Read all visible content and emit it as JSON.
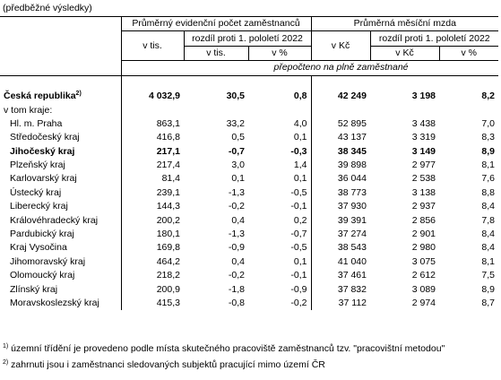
{
  "subtitle": "(předběžné výsledky)",
  "header": {
    "group1": "Průměrný evidenční počet zaměstnanců",
    "group2": "Průměrná měsíční mzda",
    "unit_tis": "v tis.",
    "unit_kc": "v Kč",
    "diff": "rozdíl proti 1. pololetí 2022",
    "sub_tis": "v tis.",
    "sub_pct": "v %",
    "sub_kc": "v Kč",
    "sub_pct2": "v %",
    "note": "přepočteno na plně zaměstnané"
  },
  "total": {
    "name": "Česká republika",
    "sup": "2)",
    "v1": "4 032,9",
    "v2": "30,5",
    "v3": "0,8",
    "v4": "42 249",
    "v5": "3 198",
    "v6": "8,2"
  },
  "in_regions": "v tom kraje:",
  "rows": [
    {
      "name": "Hl. m. Praha",
      "v1": "863,1",
      "v2": "33,2",
      "v3": "4,0",
      "v4": "52 895",
      "v5": "3 438",
      "v6": "7,0"
    },
    {
      "name": "Středočeský kraj",
      "v1": "416,8",
      "v2": "0,5",
      "v3": "0,1",
      "v4": "43 137",
      "v5": "3 319",
      "v6": "8,3"
    },
    {
      "name": "Jihočeský kraj",
      "v1": "217,1",
      "v2": "-0,7",
      "v3": "-0,3",
      "v4": "38 345",
      "v5": "3 149",
      "v6": "8,9",
      "bold": true
    },
    {
      "name": "Plzeňský kraj",
      "v1": "217,4",
      "v2": "3,0",
      "v3": "1,4",
      "v4": "39 898",
      "v5": "2 977",
      "v6": "8,1"
    },
    {
      "name": "Karlovarský kraj",
      "v1": "81,4",
      "v2": "0,1",
      "v3": "0,1",
      "v4": "36 044",
      "v5": "2 538",
      "v6": "7,6"
    },
    {
      "name": "Ústecký kraj",
      "v1": "239,1",
      "v2": "-1,3",
      "v3": "-0,5",
      "v4": "38 773",
      "v5": "3 138",
      "v6": "8,8"
    },
    {
      "name": "Liberecký kraj",
      "v1": "144,3",
      "v2": "-0,2",
      "v3": "-0,1",
      "v4": "37 930",
      "v5": "2 937",
      "v6": "8,4"
    },
    {
      "name": "Královéhradecký kraj",
      "v1": "200,2",
      "v2": "0,4",
      "v3": "0,2",
      "v4": "39 391",
      "v5": "2 856",
      "v6": "7,8"
    },
    {
      "name": "Pardubický kraj",
      "v1": "180,1",
      "v2": "-1,3",
      "v3": "-0,7",
      "v4": "37 274",
      "v5": "2 901",
      "v6": "8,4"
    },
    {
      "name": "Kraj Vysočina",
      "v1": "169,8",
      "v2": "-0,9",
      "v3": "-0,5",
      "v4": "38 543",
      "v5": "2 980",
      "v6": "8,4"
    },
    {
      "name": "Jihomoravský kraj",
      "v1": "464,2",
      "v2": "0,4",
      "v3": "0,1",
      "v4": "41 040",
      "v5": "3 075",
      "v6": "8,1"
    },
    {
      "name": "Olomoucký kraj",
      "v1": "218,2",
      "v2": "-0,2",
      "v3": "-0,1",
      "v4": "37 461",
      "v5": "2 612",
      "v6": "7,5"
    },
    {
      "name": "Zlínský kraj",
      "v1": "200,9",
      "v2": "-1,8",
      "v3": "-0,9",
      "v4": "37 832",
      "v5": "3 089",
      "v6": "8,9"
    },
    {
      "name": "Moravskoslezský kraj",
      "v1": "415,3",
      "v2": "-0,8",
      "v3": "-0,2",
      "v4": "37 112",
      "v5": "2 974",
      "v6": "8,7"
    }
  ],
  "footnotes": [
    {
      "mark": "1)",
      "text": "územní třídění je  provedeno  podle  místa skutečného pracoviště zaměstnanců tzv. \"pracovištní metodou\""
    },
    {
      "mark": "2)",
      "text": "zahrnuti jsou i zaměstnanci sledovaných subjektů pracující mimo území ČR"
    }
  ]
}
